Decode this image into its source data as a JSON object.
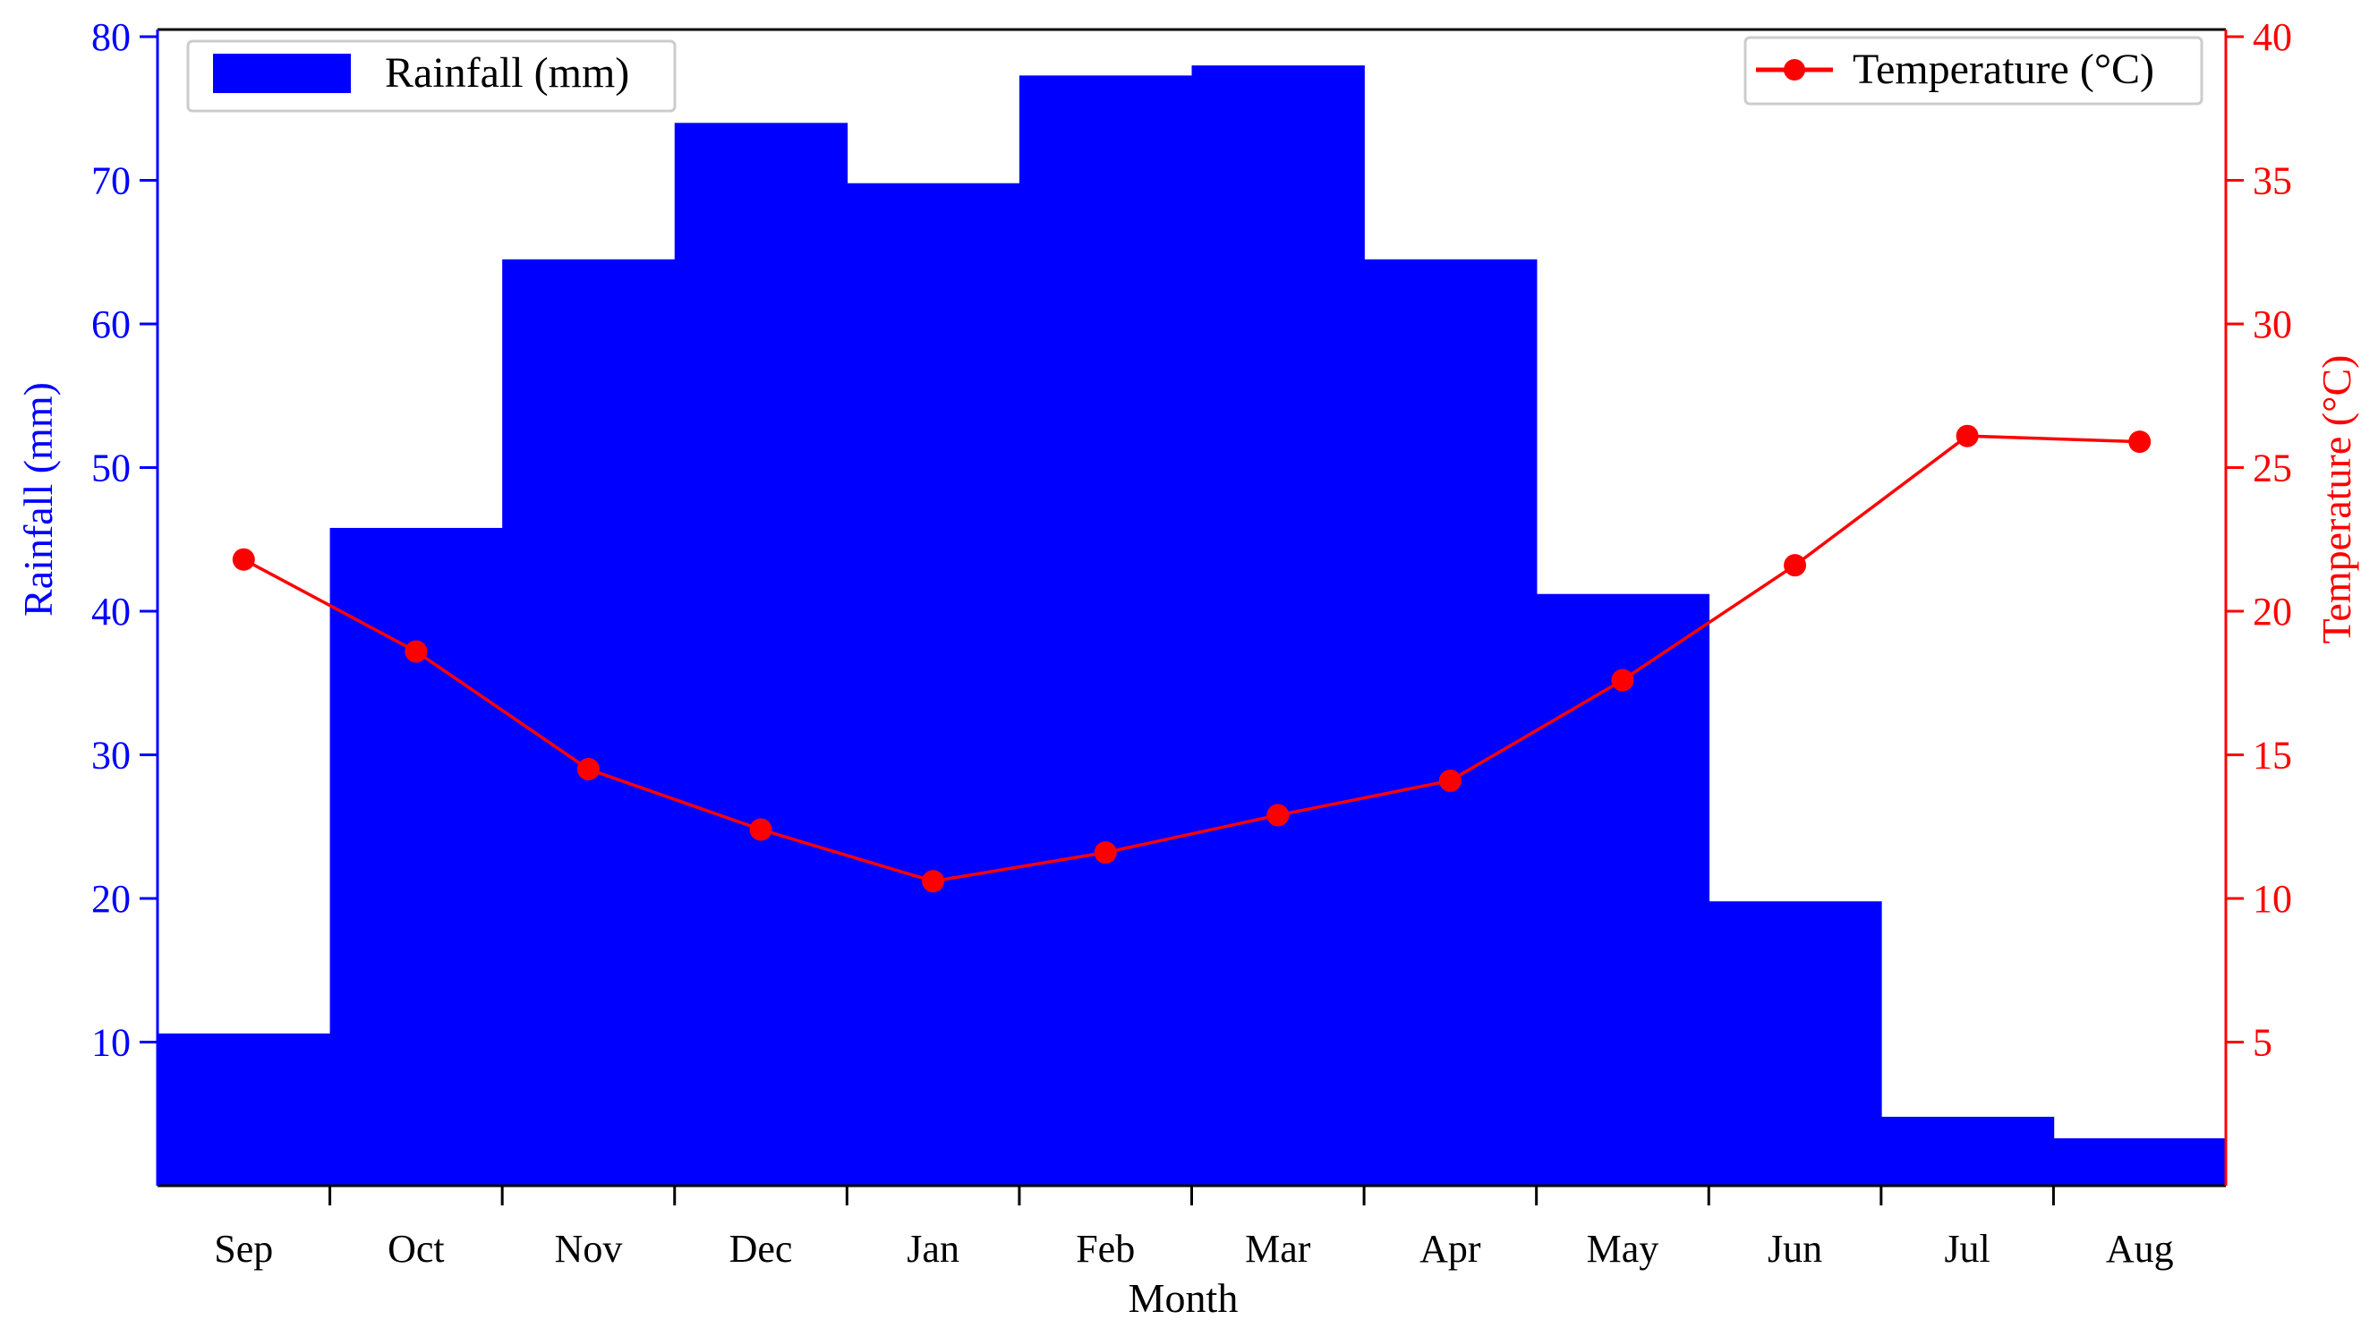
{
  "chart_data": {
    "type": "bar",
    "categories": [
      "Sep",
      "Oct",
      "Nov",
      "Dec",
      "Jan",
      "Feb",
      "Mar",
      "Apr",
      "May",
      "Jun",
      "Jul",
      "Aug"
    ],
    "xlabel": "Month",
    "series": [
      {
        "name": "Rainfall (mm)",
        "type": "bar",
        "axis": "left",
        "color": "#0000ff",
        "values": [
          10.6,
          45.8,
          64.5,
          74.0,
          69.8,
          77.3,
          78.0,
          64.5,
          41.2,
          19.8,
          4.8,
          3.3
        ]
      },
      {
        "name": "Temperature (°C)",
        "type": "line",
        "axis": "right",
        "color": "#ff0000",
        "values": [
          21.8,
          18.6,
          14.5,
          12.4,
          10.6,
          11.6,
          12.9,
          14.1,
          17.6,
          21.6,
          26.1,
          25.9
        ]
      }
    ],
    "y_left": {
      "label": "Rainfall (mm)",
      "range": [
        0,
        80.5
      ],
      "ticks": [
        10,
        20,
        30,
        40,
        50,
        60,
        70,
        80
      ],
      "color": "#0000ff"
    },
    "y_right": {
      "label": "Temperature (°C)",
      "range": [
        0,
        40.25
      ],
      "ticks": [
        5,
        10,
        15,
        20,
        25,
        30,
        35,
        40
      ],
      "color": "#ff0000"
    },
    "legend": {
      "left_position": "top-left",
      "right_position": "top-right"
    },
    "grid": false
  }
}
